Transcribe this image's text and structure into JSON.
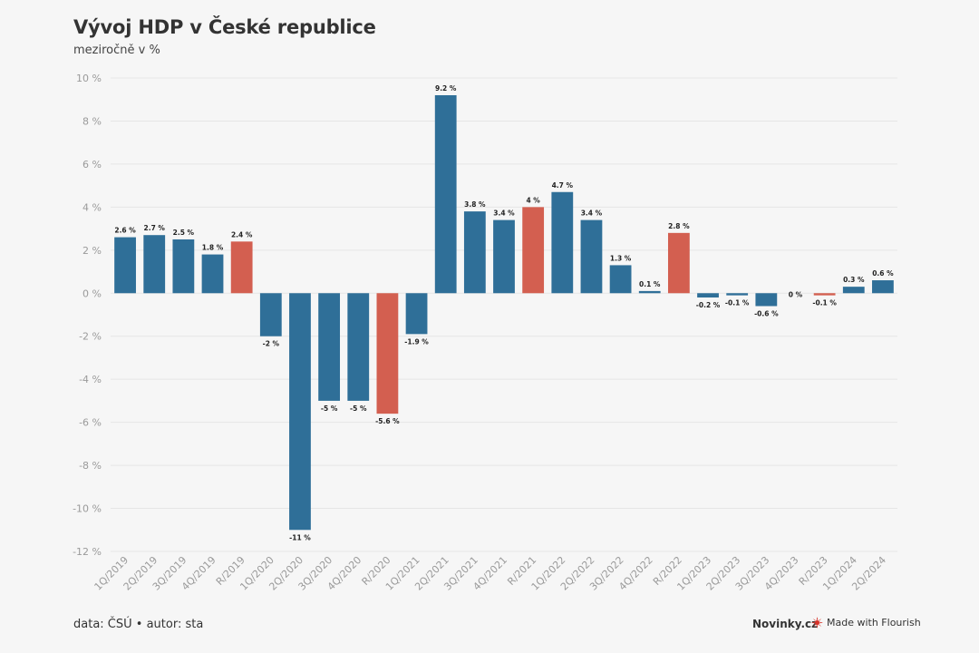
{
  "header": {
    "title": "Vývoj HDP v České republice",
    "subtitle": "meziročně v %"
  },
  "footer": {
    "source": "data: ČSÚ • autor: sta",
    "brand": "Novinky.cz",
    "made_with": "Made with Flourish"
  },
  "colors": {
    "quarter": "#2f6f98",
    "year": "#d35f50",
    "grid": "#e6e6e6",
    "axis_text": "#9a9a9a",
    "label_text": "#222222"
  },
  "icons": {
    "flourish": "flourish-logo-icon"
  },
  "chart_data": {
    "type": "bar",
    "title": "Vývoj HDP v České republice",
    "subtitle": "meziročně v %",
    "ylim": [
      -12,
      10
    ],
    "yticks": [
      10,
      8,
      6,
      4,
      2,
      0,
      -2,
      -4,
      -6,
      -8,
      -10,
      -12
    ],
    "ytick_suffix": " %",
    "grid": true,
    "categories": [
      "1Q/2019",
      "2Q/2019",
      "3Q/2019",
      "4Q/2019",
      "R/2019",
      "1Q/2020",
      "2Q/2020",
      "3Q/2020",
      "4Q/2020",
      "R/2020",
      "1Q/2021",
      "2Q/2021",
      "3Q/2021",
      "4Q/2021",
      "R/2021",
      "1Q/2022",
      "2Q/2022",
      "3Q/2022",
      "4Q/2022",
      "R/2022",
      "1Q/2023",
      "2Q/2023",
      "3Q/2023",
      "4Q/2023",
      "R/2023",
      "1Q/2024",
      "2Q/2024"
    ],
    "values": [
      2.6,
      2.7,
      2.5,
      1.8,
      2.4,
      -2,
      -11,
      -5,
      -5,
      -5.6,
      -1.9,
      9.2,
      3.8,
      3.4,
      4,
      4.7,
      3.4,
      1.3,
      0.1,
      2.8,
      -0.2,
      -0.1,
      -0.6,
      0,
      -0.1,
      0.3,
      0.6
    ],
    "labels": [
      "2.6 %",
      "2.7 %",
      "2.5 %",
      "1.8 %",
      "2.4 %",
      "-2 %",
      "-11 %",
      "-5 %",
      "-5 %",
      "-5.6 %",
      "-1.9 %",
      "9.2 %",
      "3.8 %",
      "3.4 %",
      "4 %",
      "4.7 %",
      "3.4 %",
      "1.3 %",
      "0.1 %",
      "2.8 %",
      "-0.2 %",
      "-0.1 %",
      "-0.6 %",
      "0 %",
      "-0.1 %",
      "0.3 %",
      "0.6 %"
    ],
    "kinds": [
      "q",
      "q",
      "q",
      "q",
      "y",
      "q",
      "q",
      "q",
      "q",
      "y",
      "q",
      "q",
      "q",
      "q",
      "y",
      "q",
      "q",
      "q",
      "q",
      "y",
      "q",
      "q",
      "q",
      "q",
      "y",
      "q",
      "q"
    ]
  }
}
